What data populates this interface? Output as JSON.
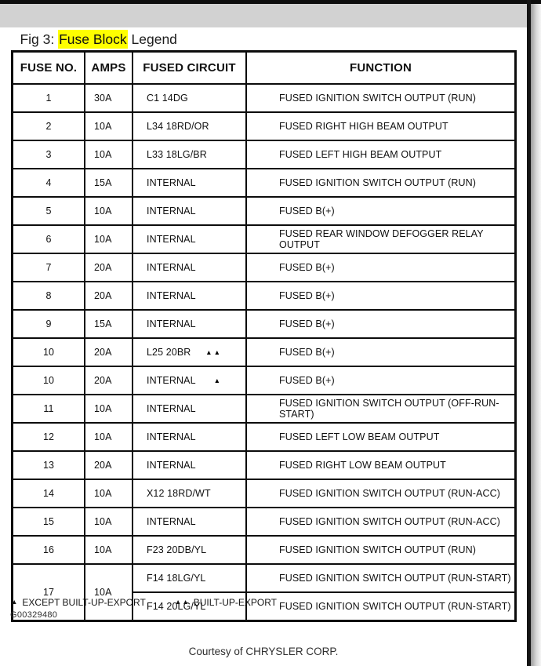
{
  "page": {
    "title_prefix": "Fig 3: ",
    "title_highlight": "Fuse Block",
    "title_suffix": " Legend",
    "figure_code": "G00329480",
    "caption": "Courtesy of CHRYSLER CORP."
  },
  "colors": {
    "title_bar_background": "#d2d2d2",
    "search_highlight": "#ffff00",
    "table_border": "#0c0c0c",
    "page_background": "#ffffff"
  },
  "table": {
    "columns": [
      "FUSE NO.",
      "AMPS",
      "FUSED CIRCUIT",
      "FUNCTION"
    ],
    "rows": [
      {
        "no": "1",
        "amps": "30A",
        "circuit": "C1 14DG",
        "marker": "",
        "function": "FUSED IGNITION SWITCH OUTPUT (RUN)"
      },
      {
        "no": "2",
        "amps": "10A",
        "circuit": "L34 18RD/OR",
        "marker": "",
        "function": "FUSED RIGHT HIGH BEAM OUTPUT"
      },
      {
        "no": "3",
        "amps": "10A",
        "circuit": "L33 18LG/BR",
        "marker": "",
        "function": "FUSED LEFT HIGH BEAM OUTPUT"
      },
      {
        "no": "4",
        "amps": "15A",
        "circuit": "INTERNAL",
        "marker": "",
        "function": "FUSED IGNITION SWITCH OUTPUT (RUN)"
      },
      {
        "no": "5",
        "amps": "10A",
        "circuit": "INTERNAL",
        "marker": "",
        "function": "FUSED B(+)"
      },
      {
        "no": "6",
        "amps": "10A",
        "circuit": "INTERNAL",
        "marker": "",
        "function": "FUSED REAR WINDOW DEFOGGER RELAY OUTPUT"
      },
      {
        "no": "7",
        "amps": "20A",
        "circuit": "INTERNAL",
        "marker": "",
        "function": "FUSED B(+)"
      },
      {
        "no": "8",
        "amps": "20A",
        "circuit": "INTERNAL",
        "marker": "",
        "function": "FUSED B(+)"
      },
      {
        "no": "9",
        "amps": "15A",
        "circuit": "INTERNAL",
        "marker": "",
        "function": "FUSED B(+)"
      },
      {
        "no": "10",
        "amps": "20A",
        "circuit": "L25 20BR",
        "marker": "▲▲",
        "function": "FUSED B(+)"
      },
      {
        "no": "10",
        "amps": "20A",
        "circuit": "INTERNAL",
        "marker": "▲",
        "function": "FUSED B(+)"
      },
      {
        "no": "11",
        "amps": "10A",
        "circuit": "INTERNAL",
        "marker": "",
        "function": "FUSED IGNITION SWITCH OUTPUT (OFF-RUN-START)"
      },
      {
        "no": "12",
        "amps": "10A",
        "circuit": "INTERNAL",
        "marker": "",
        "function": "FUSED LEFT LOW BEAM OUTPUT"
      },
      {
        "no": "13",
        "amps": "20A",
        "circuit": "INTERNAL",
        "marker": "",
        "function": "FUSED RIGHT LOW BEAM OUTPUT"
      },
      {
        "no": "14",
        "amps": "10A",
        "circuit": "X12 18RD/WT",
        "marker": "",
        "function": "FUSED IGNITION SWITCH OUTPUT (RUN-ACC)"
      },
      {
        "no": "15",
        "amps": "10A",
        "circuit": "INTERNAL",
        "marker": "",
        "function": "FUSED IGNITION SWITCH OUTPUT (RUN-ACC)"
      },
      {
        "no": "16",
        "amps": "10A",
        "circuit": "F23 20DB/YL",
        "marker": "",
        "function": "FUSED IGNITION SWITCH OUTPUT (RUN)"
      },
      {
        "no": "17",
        "amps": "10A",
        "rowspan": 2,
        "circuit": "F14 18LG/YL",
        "marker": "",
        "function": "FUSED IGNITION SWITCH OUTPUT (RUN-START)"
      },
      {
        "continuation": true,
        "circuit": "F14 20LG/YL",
        "marker": "",
        "function": "FUSED IGNITION SWITCH OUTPUT (RUN-START)"
      }
    ]
  },
  "footnotes": [
    {
      "symbol": "▲",
      "label": "EXCEPT BUILT-UP-EXPORT"
    },
    {
      "symbol": "▲▲",
      "label": "BUILT-UP-EXPORT"
    }
  ]
}
